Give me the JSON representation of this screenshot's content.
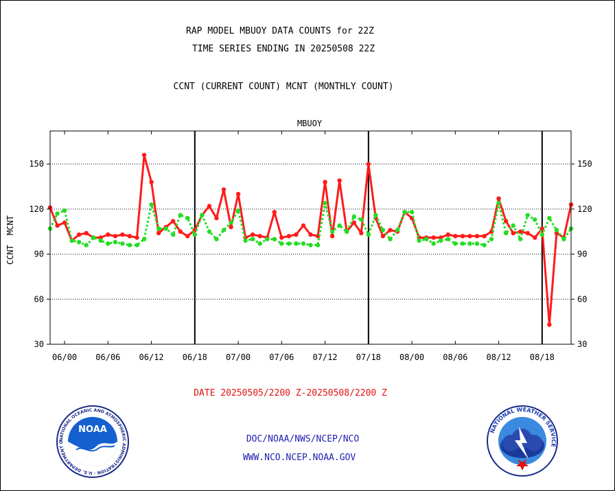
{
  "header": {
    "title_line1": "RAP MODEL MBUOY DATA COUNTS for 22Z",
    "title_line2": "TIME SERIES ENDING IN 20250508 22Z",
    "subtitle": "CCNT (CURRENT COUNT) MCNT (MONTHLY COUNT)"
  },
  "footer": {
    "date_range": "DATE 20250505/2200 Z-20250508/2200 Z",
    "link1": "DOC/NOAA/NWS/NCEP/NCO",
    "link2": "WWW.NCO.NCEP.NOAA.GOV"
  },
  "logos": {
    "noaa": "NOAA",
    "noaa_ring": "NATIONAL OCEANIC AND ATMOSPHERIC ADMINISTRATION · U.S. DEPARTMENT OF COMMERCE",
    "nws_ring": "NATIONAL WEATHER SERVICE"
  },
  "colors": {
    "ccnt": "#ff1a1a",
    "mcnt": "#22dd22",
    "panel_title": "#1a1aaa",
    "footer_red": "#e01010",
    "footer_blue": "#2020b0"
  },
  "chart_data": {
    "type": "line",
    "title": "MBUOY",
    "ylabel_ccnt": "CCNT",
    "ylabel_mcnt": "MCNT",
    "ylim": [
      30,
      172
    ],
    "yticks": [
      30,
      60,
      90,
      120,
      150
    ],
    "xticks": [
      "06/00",
      "06/06",
      "06/12",
      "06/18",
      "07/00",
      "07/06",
      "07/12",
      "07/18",
      "08/00",
      "08/06",
      "08/12",
      "08/18"
    ],
    "x_start": "05/22",
    "x_end": "08/22",
    "grid": true,
    "series": [
      {
        "name": "CCNT",
        "style": "solid",
        "values": [
          121,
          109,
          111,
          99,
          103,
          104,
          101,
          101,
          103,
          102,
          103,
          102,
          101,
          156,
          138,
          104,
          108,
          112,
          105,
          102,
          106,
          116,
          122,
          114,
          133,
          108,
          130,
          101,
          103,
          102,
          101,
          118,
          101,
          102,
          103,
          109,
          103,
          102,
          138,
          102,
          139,
          105,
          111,
          104,
          150,
          114,
          102,
          106,
          105,
          118,
          114,
          101,
          101,
          101,
          101,
          103,
          102,
          102,
          102,
          102,
          102,
          105,
          127,
          112,
          104,
          105,
          104,
          101,
          107,
          43,
          104,
          101,
          123
        ]
      },
      {
        "name": "MCNT",
        "style": "dotted",
        "values": [
          107,
          117,
          119,
          99,
          98,
          96,
          101,
          99,
          97,
          98,
          97,
          96,
          96,
          100,
          123,
          107,
          107,
          103,
          116,
          114,
          103,
          116,
          105,
          100,
          106,
          111,
          119,
          99,
          100,
          97,
          100,
          100,
          97,
          97,
          97,
          97,
          96,
          96,
          124,
          105,
          109,
          105,
          115,
          113,
          103,
          116,
          106,
          100,
          106,
          118,
          118,
          99,
          100,
          97,
          99,
          100,
          97,
          97,
          97,
          97,
          96,
          100,
          124,
          104,
          109,
          100,
          116,
          113,
          103,
          114,
          106,
          100,
          107
        ]
      }
    ]
  }
}
